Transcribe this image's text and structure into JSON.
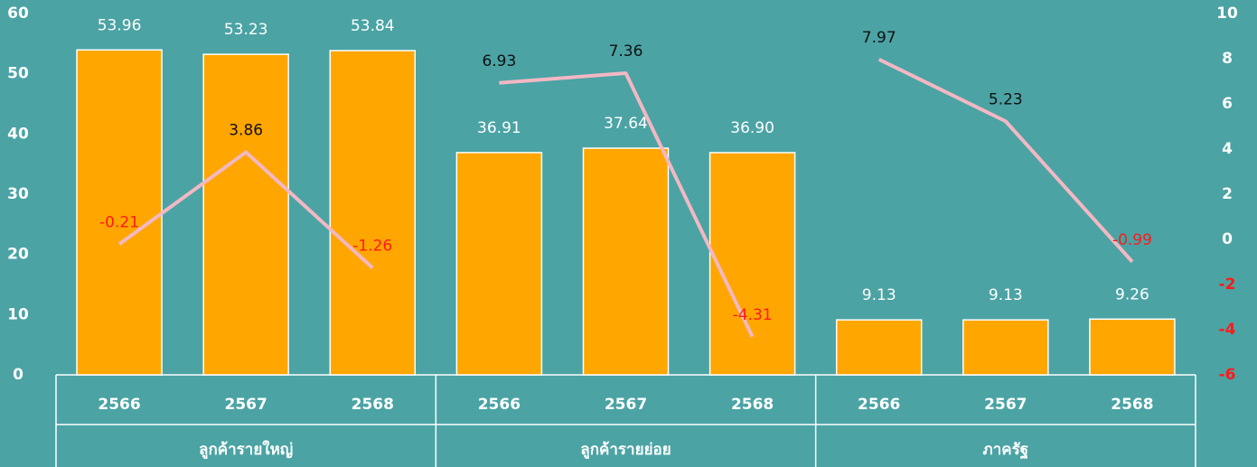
{
  "chart_data": {
    "type": "bar_line",
    "category_groups": [
      {
        "name": "ลูกค้ารายใหญ่",
        "categories": [
          "2566",
          "2567",
          "2568"
        ]
      },
      {
        "name": "ลูกค้ารายย่อย",
        "categories": [
          "2566",
          "2567",
          "2568"
        ]
      },
      {
        "name": "ภาครัฐ",
        "categories": [
          "2566",
          "2567",
          "2568"
        ]
      }
    ],
    "series": [
      {
        "type": "bar",
        "color": "#ffa600",
        "values": [
          53.96,
          53.23,
          53.84,
          36.91,
          37.64,
          36.9,
          9.13,
          9.13,
          9.26
        ],
        "value_labels": [
          "53.96",
          "53.23",
          "53.84",
          "36.91",
          "37.64",
          "36.90",
          "9.13",
          "9.13",
          "9.26"
        ]
      },
      {
        "type": "line",
        "color": "#f2b8c3",
        "axis": "y2",
        "values": [
          -0.21,
          3.86,
          -1.26,
          6.93,
          7.36,
          -4.31,
          7.97,
          5.23,
          -0.99
        ]
      }
    ],
    "ylim": [
      0,
      60
    ],
    "yticks": [
      0,
      10,
      20,
      30,
      40,
      50,
      60
    ],
    "y2lim": [
      -6,
      10
    ],
    "y2ticks": [
      -6,
      -4,
      -2,
      0,
      2,
      4,
      6,
      8,
      10
    ]
  }
}
